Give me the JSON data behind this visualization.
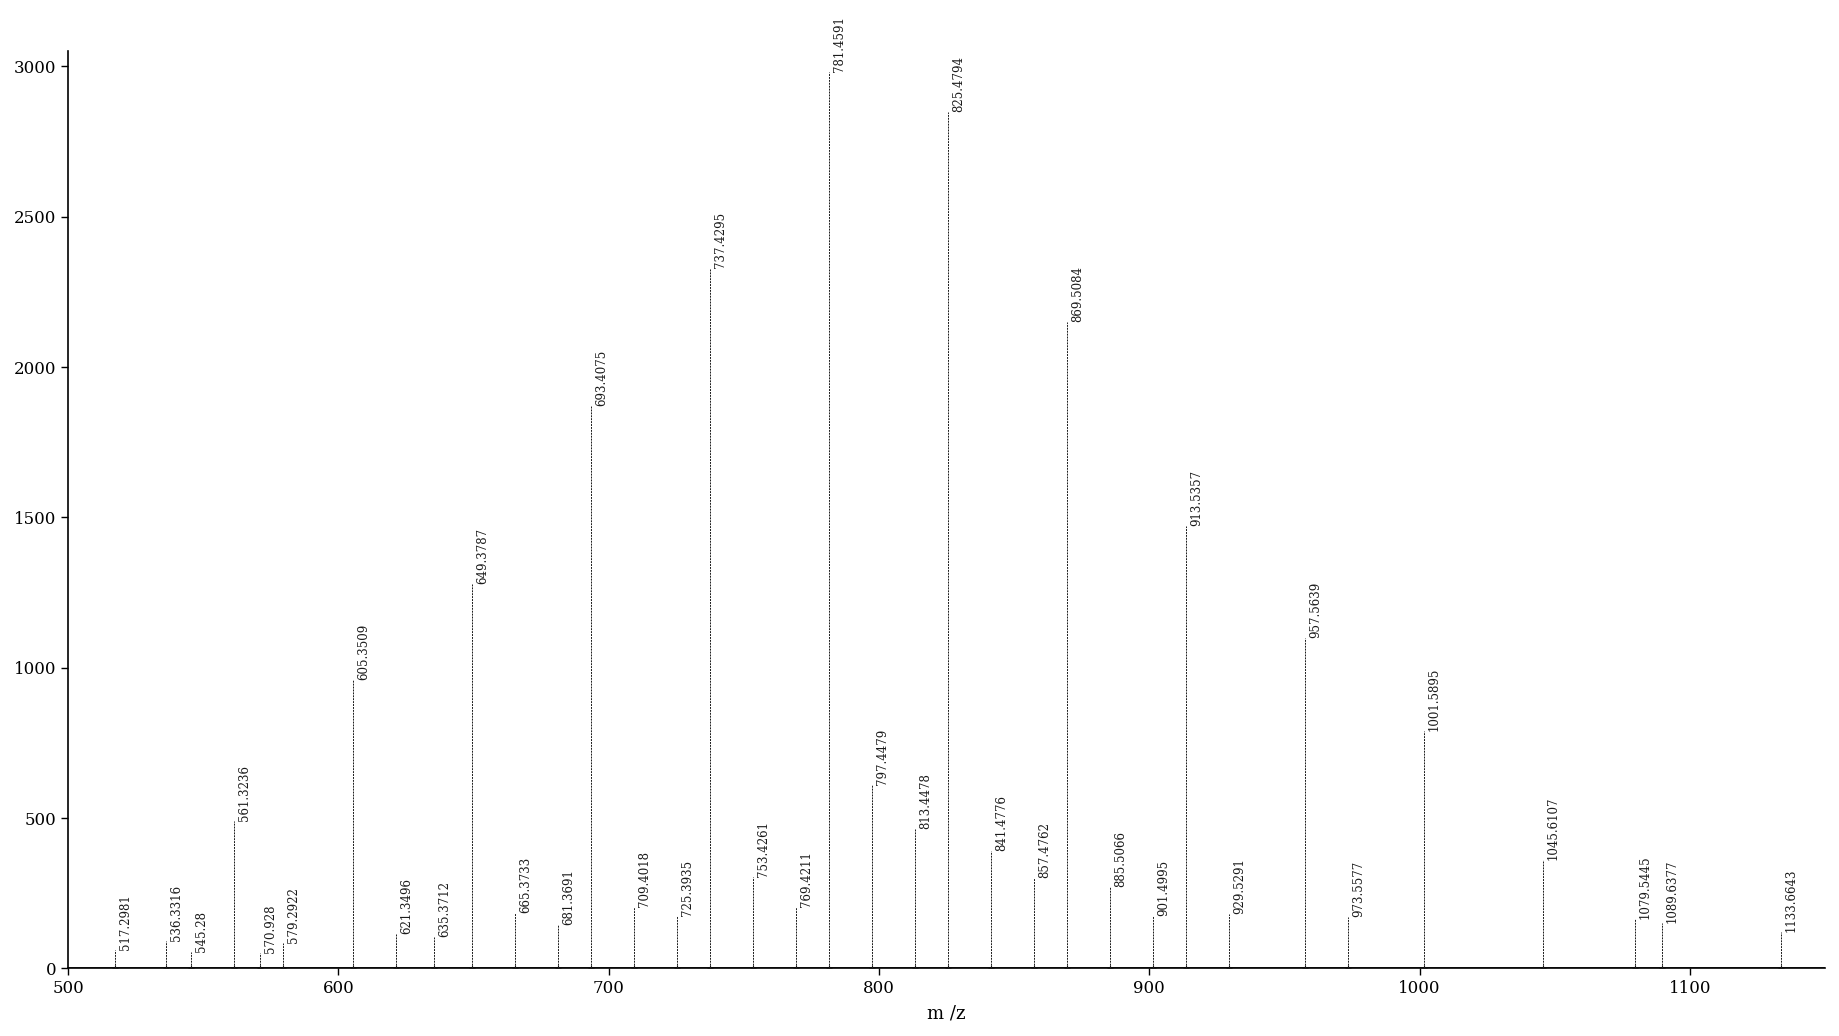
{
  "peaks": [
    {
      "mz": 517.2981,
      "intensity": 60,
      "label": "517.2981"
    },
    {
      "mz": 536.3316,
      "intensity": 90,
      "label": "536.3316"
    },
    {
      "mz": 545.28,
      "intensity": 55,
      "label": "545.28"
    },
    {
      "mz": 561.3236,
      "intensity": 490,
      "label": "561.3236"
    },
    {
      "mz": 570.928,
      "intensity": 50,
      "label": "570.928"
    },
    {
      "mz": 579.2922,
      "intensity": 85,
      "label": "579.2922"
    },
    {
      "mz": 605.3509,
      "intensity": 960,
      "label": "605.3509"
    },
    {
      "mz": 621.3496,
      "intensity": 115,
      "label": "621.3496"
    },
    {
      "mz": 635.3712,
      "intensity": 105,
      "label": "635.3712"
    },
    {
      "mz": 649.3787,
      "intensity": 1280,
      "label": "649.3787"
    },
    {
      "mz": 665.3733,
      "intensity": 185,
      "label": "665.3733"
    },
    {
      "mz": 681.3691,
      "intensity": 145,
      "label": "681.3691"
    },
    {
      "mz": 693.4075,
      "intensity": 1870,
      "label": "693.4075"
    },
    {
      "mz": 709.4018,
      "intensity": 205,
      "label": "709.4018"
    },
    {
      "mz": 725.3935,
      "intensity": 175,
      "label": "725.3935"
    },
    {
      "mz": 737.4295,
      "intensity": 2330,
      "label": "737.4295"
    },
    {
      "mz": 753.4261,
      "intensity": 305,
      "label": "753.4261"
    },
    {
      "mz": 769.4211,
      "intensity": 205,
      "label": "769.4211"
    },
    {
      "mz": 781.4591,
      "intensity": 2980,
      "label": "781.4591"
    },
    {
      "mz": 797.4479,
      "intensity": 610,
      "label": "797.4479"
    },
    {
      "mz": 813.4478,
      "intensity": 465,
      "label": "813.4478"
    },
    {
      "mz": 825.4794,
      "intensity": 2850,
      "label": "825.4794"
    },
    {
      "mz": 841.4776,
      "intensity": 390,
      "label": "841.4776"
    },
    {
      "mz": 857.4762,
      "intensity": 300,
      "label": "857.4762"
    },
    {
      "mz": 869.5084,
      "intensity": 2150,
      "label": "869.5084"
    },
    {
      "mz": 885.5066,
      "intensity": 270,
      "label": "885.5066"
    },
    {
      "mz": 901.4995,
      "intensity": 175,
      "label": "901.4995"
    },
    {
      "mz": 913.5357,
      "intensity": 1470,
      "label": "913.5357"
    },
    {
      "mz": 929.5291,
      "intensity": 180,
      "label": "929.5291"
    },
    {
      "mz": 957.5639,
      "intensity": 1100,
      "label": "957.5639"
    },
    {
      "mz": 973.5577,
      "intensity": 170,
      "label": "973.5577"
    },
    {
      "mz": 1001.5895,
      "intensity": 790,
      "label": "1001.5895"
    },
    {
      "mz": 1045.6107,
      "intensity": 360,
      "label": "1045.6107"
    },
    {
      "mz": 1079.5445,
      "intensity": 165,
      "label": "1079.5445"
    },
    {
      "mz": 1089.6377,
      "intensity": 150,
      "label": "1089.6377"
    },
    {
      "mz": 1133.6643,
      "intensity": 120,
      "label": "1133.6643"
    }
  ],
  "xlim": [
    500,
    1150
  ],
  "ylim": [
    0,
    3050
  ],
  "xlabel": "m /z",
  "xticks": [
    500,
    600,
    700,
    800,
    900,
    1000,
    1100
  ],
  "yticks": [
    0,
    500,
    1000,
    1500,
    2000,
    2500,
    3000
  ],
  "background_color": "#ffffff",
  "line_color": "#1a1a1a",
  "label_fontsize": 8.5,
  "xlabel_fontsize": 13,
  "tick_fontsize": 12
}
